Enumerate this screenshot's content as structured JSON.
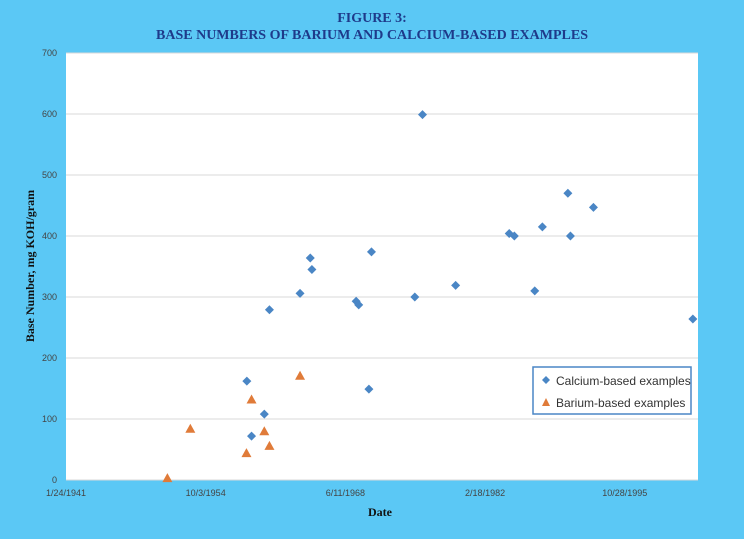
{
  "chart_data": {
    "type": "scatter",
    "title_line1": "FIGURE 3:",
    "title_line2": "BASE NUMBERS OF BARIUM AND CALCIUM-BASED EXAMPLES",
    "xlabel": "Date",
    "ylabel": "Base Number, mg KOH/gram",
    "xlim": [
      "1941-01-24",
      "2002-12-31"
    ],
    "ylim": [
      0,
      700
    ],
    "x_ticks": [
      "1941-01-24",
      "1954-10-03",
      "1968-06-11",
      "1982-02-18",
      "1995-10-28"
    ],
    "x_tick_labels": [
      "1/24/1941",
      "10/3/1954",
      "6/11/1968",
      "2/18/1982",
      "10/28/1995"
    ],
    "y_ticks": [
      0,
      100,
      200,
      300,
      400,
      500,
      600,
      700
    ],
    "grid": true,
    "legend_position": "bottom-right",
    "series": [
      {
        "name": "Calcium-based examples",
        "marker": "diamond",
        "color": "#4a86c5",
        "points": [
          {
            "x": "1958-10-15",
            "y": 162
          },
          {
            "x": "1959-04-01",
            "y": 72
          },
          {
            "x": "1960-07-01",
            "y": 108
          },
          {
            "x": "1961-01-01",
            "y": 279
          },
          {
            "x": "1964-01-01",
            "y": 306
          },
          {
            "x": "1965-01-01",
            "y": 364
          },
          {
            "x": "1965-03-01",
            "y": 345
          },
          {
            "x": "1969-07-01",
            "y": 293
          },
          {
            "x": "1969-10-01",
            "y": 287
          },
          {
            "x": "1970-10-01",
            "y": 149
          },
          {
            "x": "1971-01-01",
            "y": 374
          },
          {
            "x": "1975-04-01",
            "y": 300
          },
          {
            "x": "1976-01-01",
            "y": 599
          },
          {
            "x": "1979-04-01",
            "y": 319
          },
          {
            "x": "1984-07-01",
            "y": 404
          },
          {
            "x": "1985-01-01",
            "y": 400
          },
          {
            "x": "1987-01-01",
            "y": 310
          },
          {
            "x": "1987-10-01",
            "y": 415
          },
          {
            "x": "1990-04-01",
            "y": 470
          },
          {
            "x": "1990-07-01",
            "y": 400
          },
          {
            "x": "1992-10-01",
            "y": 447
          },
          {
            "x": "2002-07-01",
            "y": 264
          }
        ]
      },
      {
        "name": "Barium-based examples",
        "marker": "triangle",
        "color": "#e07b39",
        "points": [
          {
            "x": "1951-01-01",
            "y": 3
          },
          {
            "x": "1953-04-01",
            "y": 84
          },
          {
            "x": "1958-10-01",
            "y": 44
          },
          {
            "x": "1959-04-01",
            "y": 132
          },
          {
            "x": "1960-07-01",
            "y": 80
          },
          {
            "x": "1961-01-01",
            "y": 56
          },
          {
            "x": "1964-01-01",
            "y": 171
          }
        ]
      }
    ]
  }
}
